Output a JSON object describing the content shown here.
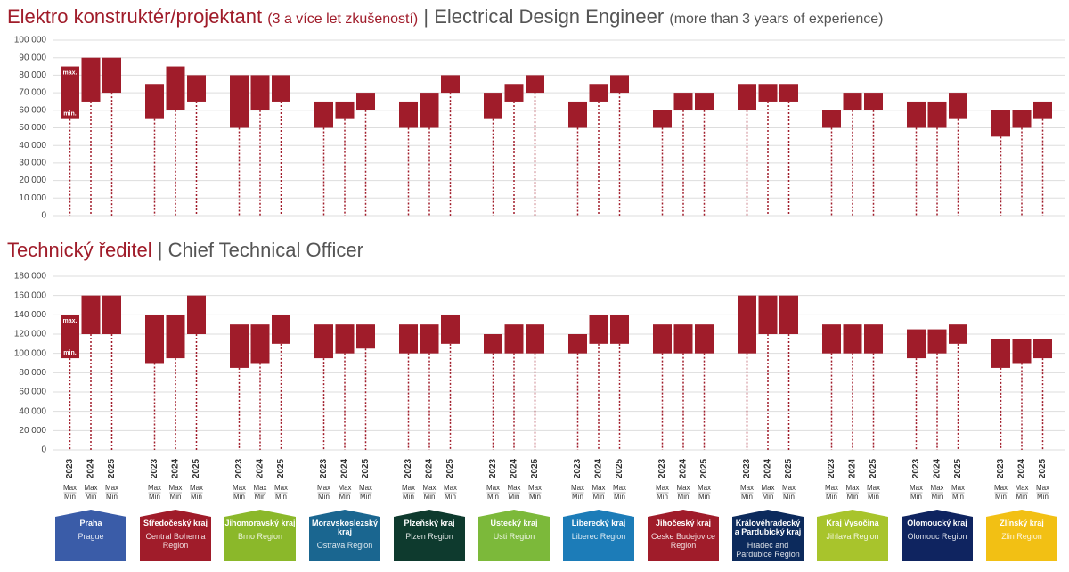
{
  "chart_data": [
    {
      "type": "range-bar",
      "title": "Elektro konstruktér/projektant",
      "title_note": "(3 a více let zkušeností)",
      "separator": "|",
      "title_en": "Electrical Design Engineer",
      "title_en_note": "(more than 3 years of experience)",
      "color": "#a01c2a",
      "grid": true,
      "ylim": [
        0,
        100000
      ],
      "yticks": [
        0,
        {
          "value": 10000,
          "label": "10 000"
        },
        {
          "value": 20000,
          "label": "20 000"
        },
        {
          "value": 30000,
          "label": "30 000"
        },
        {
          "value": 40000,
          "label": "40 000"
        },
        {
          "value": 50000,
          "label": "50 000"
        },
        {
          "value": 60000,
          "label": "60 000"
        },
        {
          "value": 70000,
          "label": "70 000"
        },
        {
          "value": 80000,
          "label": "80 000"
        },
        {
          "value": 90000,
          "label": "90 000"
        },
        {
          "value": 100000,
          "label": "100 000"
        }
      ],
      "min": [
        [
          55000,
          65000,
          70000
        ],
        [
          55000,
          60000,
          65000
        ],
        [
          50000,
          60000,
          65000
        ],
        [
          50000,
          55000,
          60000
        ],
        [
          50000,
          50000,
          70000
        ],
        [
          55000,
          65000,
          70000
        ],
        [
          50000,
          65000,
          70000
        ],
        [
          50000,
          60000,
          60000
        ],
        [
          60000,
          65000,
          65000
        ],
        [
          50000,
          60000,
          60000
        ],
        [
          50000,
          50000,
          55000
        ],
        [
          45000,
          50000,
          55000
        ]
      ],
      "max": [
        [
          85000,
          90000,
          90000
        ],
        [
          75000,
          85000,
          80000
        ],
        [
          80000,
          80000,
          80000
        ],
        [
          65000,
          65000,
          70000
        ],
        [
          65000,
          70000,
          80000
        ],
        [
          70000,
          75000,
          80000
        ],
        [
          65000,
          75000,
          80000
        ],
        [
          60000,
          70000,
          70000
        ],
        [
          75000,
          75000,
          75000
        ],
        [
          60000,
          70000,
          70000
        ],
        [
          65000,
          65000,
          70000
        ],
        [
          60000,
          60000,
          65000
        ]
      ]
    },
    {
      "type": "range-bar",
      "title": "Technický ředitel",
      "separator": "|",
      "title_en": "Chief Technical Officer",
      "color": "#a01c2a",
      "grid": true,
      "ylim": [
        0,
        180000
      ],
      "yticks": [
        0,
        {
          "value": 20000,
          "label": "20 000"
        },
        {
          "value": 40000,
          "label": "40 000"
        },
        {
          "value": 60000,
          "label": "60 000"
        },
        {
          "value": 80000,
          "label": "80 000"
        },
        {
          "value": 100000,
          "label": "100 000"
        },
        {
          "value": 120000,
          "label": "120 000"
        },
        {
          "value": 140000,
          "label": "140 000"
        },
        {
          "value": 160000,
          "label": "160 000"
        },
        {
          "value": 180000,
          "label": "180 000"
        }
      ],
      "min": [
        [
          95000,
          120000,
          120000
        ],
        [
          90000,
          95000,
          120000
        ],
        [
          85000,
          90000,
          110000
        ],
        [
          95000,
          100000,
          105000
        ],
        [
          100000,
          100000,
          110000
        ],
        [
          100000,
          100000,
          100000
        ],
        [
          100000,
          110000,
          110000
        ],
        [
          100000,
          100000,
          100000
        ],
        [
          100000,
          120000,
          120000
        ],
        [
          100000,
          100000,
          100000
        ],
        [
          95000,
          100000,
          110000
        ],
        [
          85000,
          90000,
          95000
        ]
      ],
      "max": [
        [
          140000,
          160000,
          160000
        ],
        [
          140000,
          140000,
          160000
        ],
        [
          130000,
          130000,
          140000
        ],
        [
          130000,
          130000,
          130000
        ],
        [
          130000,
          130000,
          140000
        ],
        [
          120000,
          130000,
          130000
        ],
        [
          120000,
          140000,
          140000
        ],
        [
          130000,
          130000,
          130000
        ],
        [
          160000,
          160000,
          160000
        ],
        [
          130000,
          130000,
          130000
        ],
        [
          125000,
          125000,
          130000
        ],
        [
          115000,
          115000,
          115000
        ]
      ]
    }
  ],
  "bar_max_label": "max.",
  "bar_min_label": "min.",
  "years": [
    "2023",
    "2024",
    "2025"
  ],
  "max_label": "Max",
  "min_label": "Min",
  "regions": [
    {
      "name": "Praha",
      "name_en": "Prague",
      "color": "#3a5ca8"
    },
    {
      "name": "Středočeský kraj",
      "name_en": "Central Bohemia Region",
      "color": "#a01c2a"
    },
    {
      "name": "Jihomoravský kraj",
      "name_en": "Brno Region",
      "color": "#8bb82a"
    },
    {
      "name": "Moravskoslezský kraj",
      "name_en": "Ostrava Region",
      "color": "#1a6690"
    },
    {
      "name": "Plzeňský kraj",
      "name_en": "Plzen Region",
      "color": "#0e3a2e"
    },
    {
      "name": "Ústecký kraj",
      "name_en": "Usti Region",
      "color": "#7cb93a"
    },
    {
      "name": "Liberecký kraj",
      "name_en": "Liberec Region",
      "color": "#1c7cb8"
    },
    {
      "name": "Jihočeský kraj",
      "name_en": "Ceske Budejovice Region",
      "color": "#a01c2a"
    },
    {
      "name": "Královéhradecký a Pardubický kraj",
      "name_en": "Hradec and Pardubice Region",
      "color": "#0c2a5c"
    },
    {
      "name": "Kraj Vysočina",
      "name_en": "Jihlava Region",
      "color": "#a8c42c"
    },
    {
      "name": "Olomoucký kraj",
      "name_en": "Olomouc Region",
      "color": "#0f2460"
    },
    {
      "name": "Zlínský kraj",
      "name_en": "Zlin Region",
      "color": "#f2c014"
    }
  ]
}
